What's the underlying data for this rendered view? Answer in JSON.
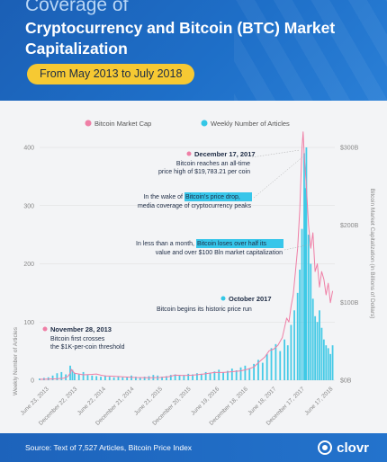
{
  "header": {
    "top_label": "Coverage of",
    "title": "Cryptocurrency and Bitcoin (BTC) Market Capitalization",
    "date_range": "From May 2013 to July 2018"
  },
  "footer": {
    "source": "Source: Text of 7,527 Articles, Bitcoin Price Index",
    "brand": "clovr"
  },
  "colors": {
    "market_cap": "#ef7fa6",
    "articles": "#33c7e6",
    "highlight": "#37c6ea",
    "annotation_dot_pink": "#ef7fa6",
    "annotation_dot_cyan": "#33c7e6"
  },
  "chart_data": {
    "type": "bar",
    "legend": [
      {
        "name": "Bitcoin Market Cap",
        "color": "#ef7fa6"
      },
      {
        "name": "Weekly Number of Articles",
        "color": "#33c7e6"
      }
    ],
    "ylabel_left": "Weekly Number of Articles",
    "ylabel_right": "Bitcoin Market Capitalization (in Billions of Dollars)",
    "left_ticks": [
      "0",
      "100",
      "200",
      "300",
      "400"
    ],
    "left_ylim": [
      0,
      400
    ],
    "right_ticks": [
      "$0B",
      "$100B",
      "$200B",
      "$300B"
    ],
    "right_ylim": [
      0,
      300
    ],
    "x_ticks": [
      "June 23, 2013",
      "December 22, 2013",
      "June 22, 2014",
      "December 21, 2014",
      "June 21, 2015",
      "December 20, 2015",
      "June 19, 2016",
      "December 18, 2016",
      "June 18, 2017",
      "December 17, 2017",
      "June 17, 2018"
    ],
    "x_tick_week_index": [
      6,
      32,
      58,
      84,
      110,
      136,
      162,
      188,
      214,
      240,
      266
    ],
    "x_range_weeks": [
      0,
      270
    ],
    "articles_weekly": [
      {
        "week": 0,
        "value": 3
      },
      {
        "week": 4,
        "value": 4
      },
      {
        "week": 8,
        "value": 5
      },
      {
        "week": 12,
        "value": 8
      },
      {
        "week": 16,
        "value": 12
      },
      {
        "week": 20,
        "value": 14
      },
      {
        "week": 24,
        "value": 10
      },
      {
        "week": 28,
        "value": 25
      },
      {
        "week": 30,
        "value": 18
      },
      {
        "week": 32,
        "value": 12
      },
      {
        "week": 36,
        "value": 10
      },
      {
        "week": 40,
        "value": 14
      },
      {
        "week": 44,
        "value": 9
      },
      {
        "week": 48,
        "value": 8
      },
      {
        "week": 52,
        "value": 7
      },
      {
        "week": 56,
        "value": 6
      },
      {
        "week": 60,
        "value": 8
      },
      {
        "week": 64,
        "value": 6
      },
      {
        "week": 68,
        "value": 5
      },
      {
        "week": 72,
        "value": 7
      },
      {
        "week": 76,
        "value": 5
      },
      {
        "week": 80,
        "value": 6
      },
      {
        "week": 84,
        "value": 8
      },
      {
        "week": 88,
        "value": 6
      },
      {
        "week": 92,
        "value": 5
      },
      {
        "week": 96,
        "value": 6
      },
      {
        "week": 100,
        "value": 7
      },
      {
        "week": 104,
        "value": 9
      },
      {
        "week": 108,
        "value": 8
      },
      {
        "week": 112,
        "value": 6
      },
      {
        "week": 116,
        "value": 7
      },
      {
        "week": 120,
        "value": 9
      },
      {
        "week": 124,
        "value": 10
      },
      {
        "week": 128,
        "value": 8
      },
      {
        "week": 132,
        "value": 9
      },
      {
        "week": 136,
        "value": 11
      },
      {
        "week": 140,
        "value": 10
      },
      {
        "week": 144,
        "value": 12
      },
      {
        "week": 148,
        "value": 11
      },
      {
        "week": 152,
        "value": 14
      },
      {
        "week": 156,
        "value": 13
      },
      {
        "week": 160,
        "value": 15
      },
      {
        "week": 164,
        "value": 18
      },
      {
        "week": 168,
        "value": 14
      },
      {
        "week": 172,
        "value": 16
      },
      {
        "week": 176,
        "value": 20
      },
      {
        "week": 180,
        "value": 17
      },
      {
        "week": 184,
        "value": 22
      },
      {
        "week": 188,
        "value": 25
      },
      {
        "week": 192,
        "value": 20
      },
      {
        "week": 196,
        "value": 28
      },
      {
        "week": 200,
        "value": 35
      },
      {
        "week": 204,
        "value": 30
      },
      {
        "week": 208,
        "value": 45
      },
      {
        "week": 212,
        "value": 55
      },
      {
        "week": 216,
        "value": 62
      },
      {
        "week": 220,
        "value": 50
      },
      {
        "week": 224,
        "value": 70
      },
      {
        "week": 227,
        "value": 60
      },
      {
        "week": 230,
        "value": 95
      },
      {
        "week": 233,
        "value": 120
      },
      {
        "week": 236,
        "value": 150
      },
      {
        "week": 238,
        "value": 190
      },
      {
        "week": 240,
        "value": 260
      },
      {
        "week": 242,
        "value": 390
      },
      {
        "week": 243,
        "value": 330
      },
      {
        "week": 244,
        "value": 400
      },
      {
        "week": 246,
        "value": 250
      },
      {
        "week": 248,
        "value": 200
      },
      {
        "week": 250,
        "value": 140
      },
      {
        "week": 252,
        "value": 110
      },
      {
        "week": 254,
        "value": 100
      },
      {
        "week": 256,
        "value": 120
      },
      {
        "week": 258,
        "value": 90
      },
      {
        "week": 260,
        "value": 70
      },
      {
        "week": 262,
        "value": 60
      },
      {
        "week": 264,
        "value": 55
      },
      {
        "week": 266,
        "value": 45
      },
      {
        "week": 268,
        "value": 60
      }
    ],
    "market_cap_billions": [
      [
        0,
        1.2
      ],
      [
        8,
        1.5
      ],
      [
        16,
        1.8
      ],
      [
        22,
        2.5
      ],
      [
        26,
        5
      ],
      [
        28,
        9
      ],
      [
        29,
        14
      ],
      [
        30,
        12
      ],
      [
        32,
        9
      ],
      [
        36,
        8
      ],
      [
        40,
        7
      ],
      [
        48,
        7.5
      ],
      [
        52,
        8
      ],
      [
        56,
        6.5
      ],
      [
        60,
        5.5
      ],
      [
        70,
        5
      ],
      [
        80,
        4
      ],
      [
        88,
        3.5
      ],
      [
        100,
        3.2
      ],
      [
        110,
        3.5
      ],
      [
        118,
        4.5
      ],
      [
        124,
        6.5
      ],
      [
        132,
        6
      ],
      [
        140,
        6.5
      ],
      [
        150,
        8
      ],
      [
        160,
        10
      ],
      [
        168,
        10
      ],
      [
        176,
        11
      ],
      [
        184,
        12
      ],
      [
        190,
        14
      ],
      [
        196,
        17
      ],
      [
        202,
        25
      ],
      [
        206,
        30
      ],
      [
        210,
        38
      ],
      [
        214,
        40
      ],
      [
        218,
        45
      ],
      [
        222,
        55
      ],
      [
        226,
        80
      ],
      [
        228,
        75
      ],
      [
        230,
        95
      ],
      [
        232,
        110
      ],
      [
        234,
        140
      ],
      [
        236,
        170
      ],
      [
        238,
        220
      ],
      [
        240,
        300
      ],
      [
        241,
        320
      ],
      [
        242,
        290
      ],
      [
        244,
        250
      ],
      [
        246,
        200
      ],
      [
        248,
        170
      ],
      [
        250,
        190
      ],
      [
        252,
        140
      ],
      [
        254,
        150
      ],
      [
        256,
        120
      ],
      [
        258,
        140
      ],
      [
        260,
        130
      ],
      [
        262,
        110
      ],
      [
        264,
        125
      ],
      [
        266,
        100
      ],
      [
        268,
        115
      ]
    ],
    "annotations": [
      {
        "date": "November 28, 2013",
        "text": "Bitcoin first crosses the $1K-per-coin threshold",
        "dot": "pink"
      },
      {
        "date": "December 17, 2017",
        "text": "Bitcoin reaches an all-time price high of $19,783.21 per coin",
        "dot": "pink"
      },
      {
        "pre": "In the wake of",
        "highlight": "Bitcoin's price drop,",
        "post": "media coverage of cryptocurrency peaks"
      },
      {
        "pre": "In less than a month,",
        "highlight": "Bitcoin loses over half its",
        "post": "value and over $100 Bln market capitalization"
      },
      {
        "date": "October 2017",
        "text": "Bitcoin begins its historic price run",
        "dot": "cyan"
      }
    ]
  }
}
